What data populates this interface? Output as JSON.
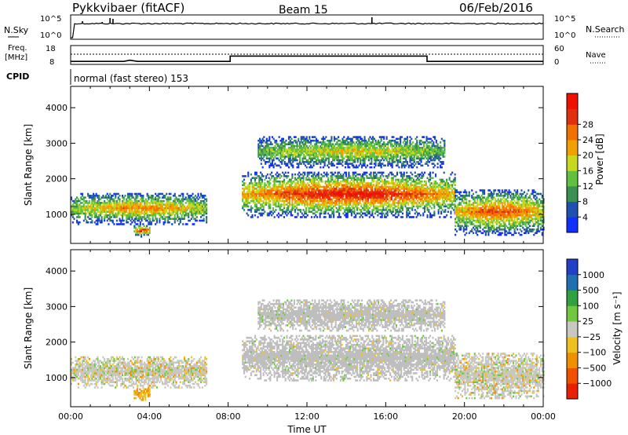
{
  "header": {
    "station": "Pykkvibaer (fitACF)",
    "beam": "Beam 15",
    "date": "06/Feb/2016"
  },
  "noise_panel": {
    "left_label": "N.Sky",
    "right_label": "N.Search",
    "left_ticks": [
      "10^5",
      "10^0"
    ],
    "right_ticks": [
      "10^5",
      "10^0"
    ]
  },
  "freq_panel": {
    "left_label_line1": "Freq.",
    "left_label_line2": "[MHz]",
    "right_label": "Nave",
    "left_ticks": [
      "18",
      "8"
    ],
    "right_ticks": [
      "60",
      "0"
    ]
  },
  "cpid": {
    "label": "CPID",
    "value": "normal (fast stereo) 153"
  },
  "chart_data": [
    {
      "type": "heatmap",
      "title": "",
      "ylabel": "Slant Range [km]",
      "ylim": [
        180,
        4600
      ],
      "y_ticks": [
        "1000",
        "2000",
        "3000",
        "4000"
      ],
      "colorbar_label": "Power [dB]",
      "colorbar_ticks": [
        "4",
        "8",
        "12",
        "16",
        "20",
        "24",
        "28"
      ],
      "colorbar_colors": [
        "#1030ff",
        "#2050b0",
        "#3a9050",
        "#60c040",
        "#c8d820",
        "#f0a000",
        "#f07000",
        "#e03010",
        "#f01000"
      ],
      "echo_regions": [
        {
          "time_h": [
            0,
            6.9
          ],
          "range_km": [
            700,
            1600
          ],
          "peak_db": 20
        },
        {
          "time_h": [
            3.2,
            4.0
          ],
          "range_km": [
            350,
            700
          ],
          "peak_db": 28
        },
        {
          "time_h": [
            8.7,
            19.5
          ],
          "range_km": [
            900,
            2200
          ],
          "peak_db": 28
        },
        {
          "time_h": [
            9.5,
            19.0
          ],
          "range_km": [
            2300,
            3200
          ],
          "peak_db": 16
        },
        {
          "time_h": [
            19.5,
            24.0
          ],
          "range_km": [
            400,
            1700
          ],
          "peak_db": 24
        }
      ]
    },
    {
      "type": "heatmap",
      "title": "",
      "ylabel": "Slant Range [km]",
      "xlabel": "Time UT",
      "ylim": [
        180,
        4600
      ],
      "y_ticks": [
        "1000",
        "2000",
        "3000",
        "4000"
      ],
      "x_ticks": [
        "00:00",
        "04:00",
        "08:00",
        "12:00",
        "16:00",
        "20:00",
        "00:00"
      ],
      "colorbar_label": "Velocity [m s⁻¹]",
      "colorbar_ticks": [
        "1000",
        "500",
        "100",
        "25",
        "−25",
        "−100",
        "−500",
        "−1000"
      ],
      "colorbar_colors": [
        "#2040c8",
        "#2070b0",
        "#30a040",
        "#70c840",
        "#c8c8c0",
        "#f0c020",
        "#f09000",
        "#f05000",
        "#e82000"
      ],
      "ground_scatter_color": "#bebebe"
    }
  ],
  "frequency_trace_mhz": [
    [
      0,
      9.6
    ],
    [
      2.7,
      9.6
    ],
    [
      3.0,
      10.2
    ],
    [
      3.4,
      9.6
    ],
    [
      8.1,
      9.6
    ],
    [
      8.1,
      12.4
    ],
    [
      18.1,
      12.4
    ],
    [
      18.1,
      9.6
    ],
    [
      24,
      9.6
    ]
  ],
  "search_noise_level": "dotted"
}
